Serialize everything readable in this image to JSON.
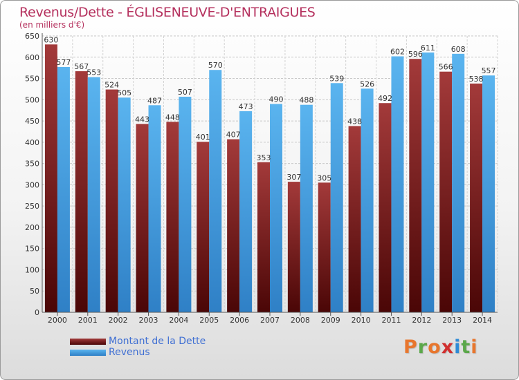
{
  "title": "Revenus/Dette - ÉGLISENEUVE-D'ENTRAIGUES",
  "subtitle": "(en milliers d'€)",
  "logo_text": "Proxiti",
  "colors": {
    "title": "#b5315e",
    "dette": "#7a1717",
    "revenus": "#4ea6e6",
    "legend_text": "#3f6fd3"
  },
  "chart_data": {
    "type": "bar",
    "categories": [
      "2000",
      "2001",
      "2002",
      "2003",
      "2004",
      "2005",
      "2006",
      "2007",
      "2008",
      "2009",
      "2010",
      "2011",
      "2012",
      "2013",
      "2014"
    ],
    "series": [
      {
        "name": "Montant de la Dette",
        "values": [
          630,
          567,
          524,
          443,
          448,
          401,
          407,
          353,
          307,
          305,
          438,
          492,
          596,
          566,
          538
        ]
      },
      {
        "name": "Revenus",
        "values": [
          577,
          553,
          505,
          487,
          507,
          570,
          473,
          490,
          488,
          539,
          526,
          602,
          611,
          608,
          557
        ]
      }
    ],
    "yticks": [
      0,
      50,
      100,
      150,
      200,
      250,
      300,
      350,
      400,
      450,
      500,
      550,
      600,
      650
    ],
    "ylim": [
      0,
      650
    ],
    "grid": true,
    "legend_position": "bottom-left"
  }
}
